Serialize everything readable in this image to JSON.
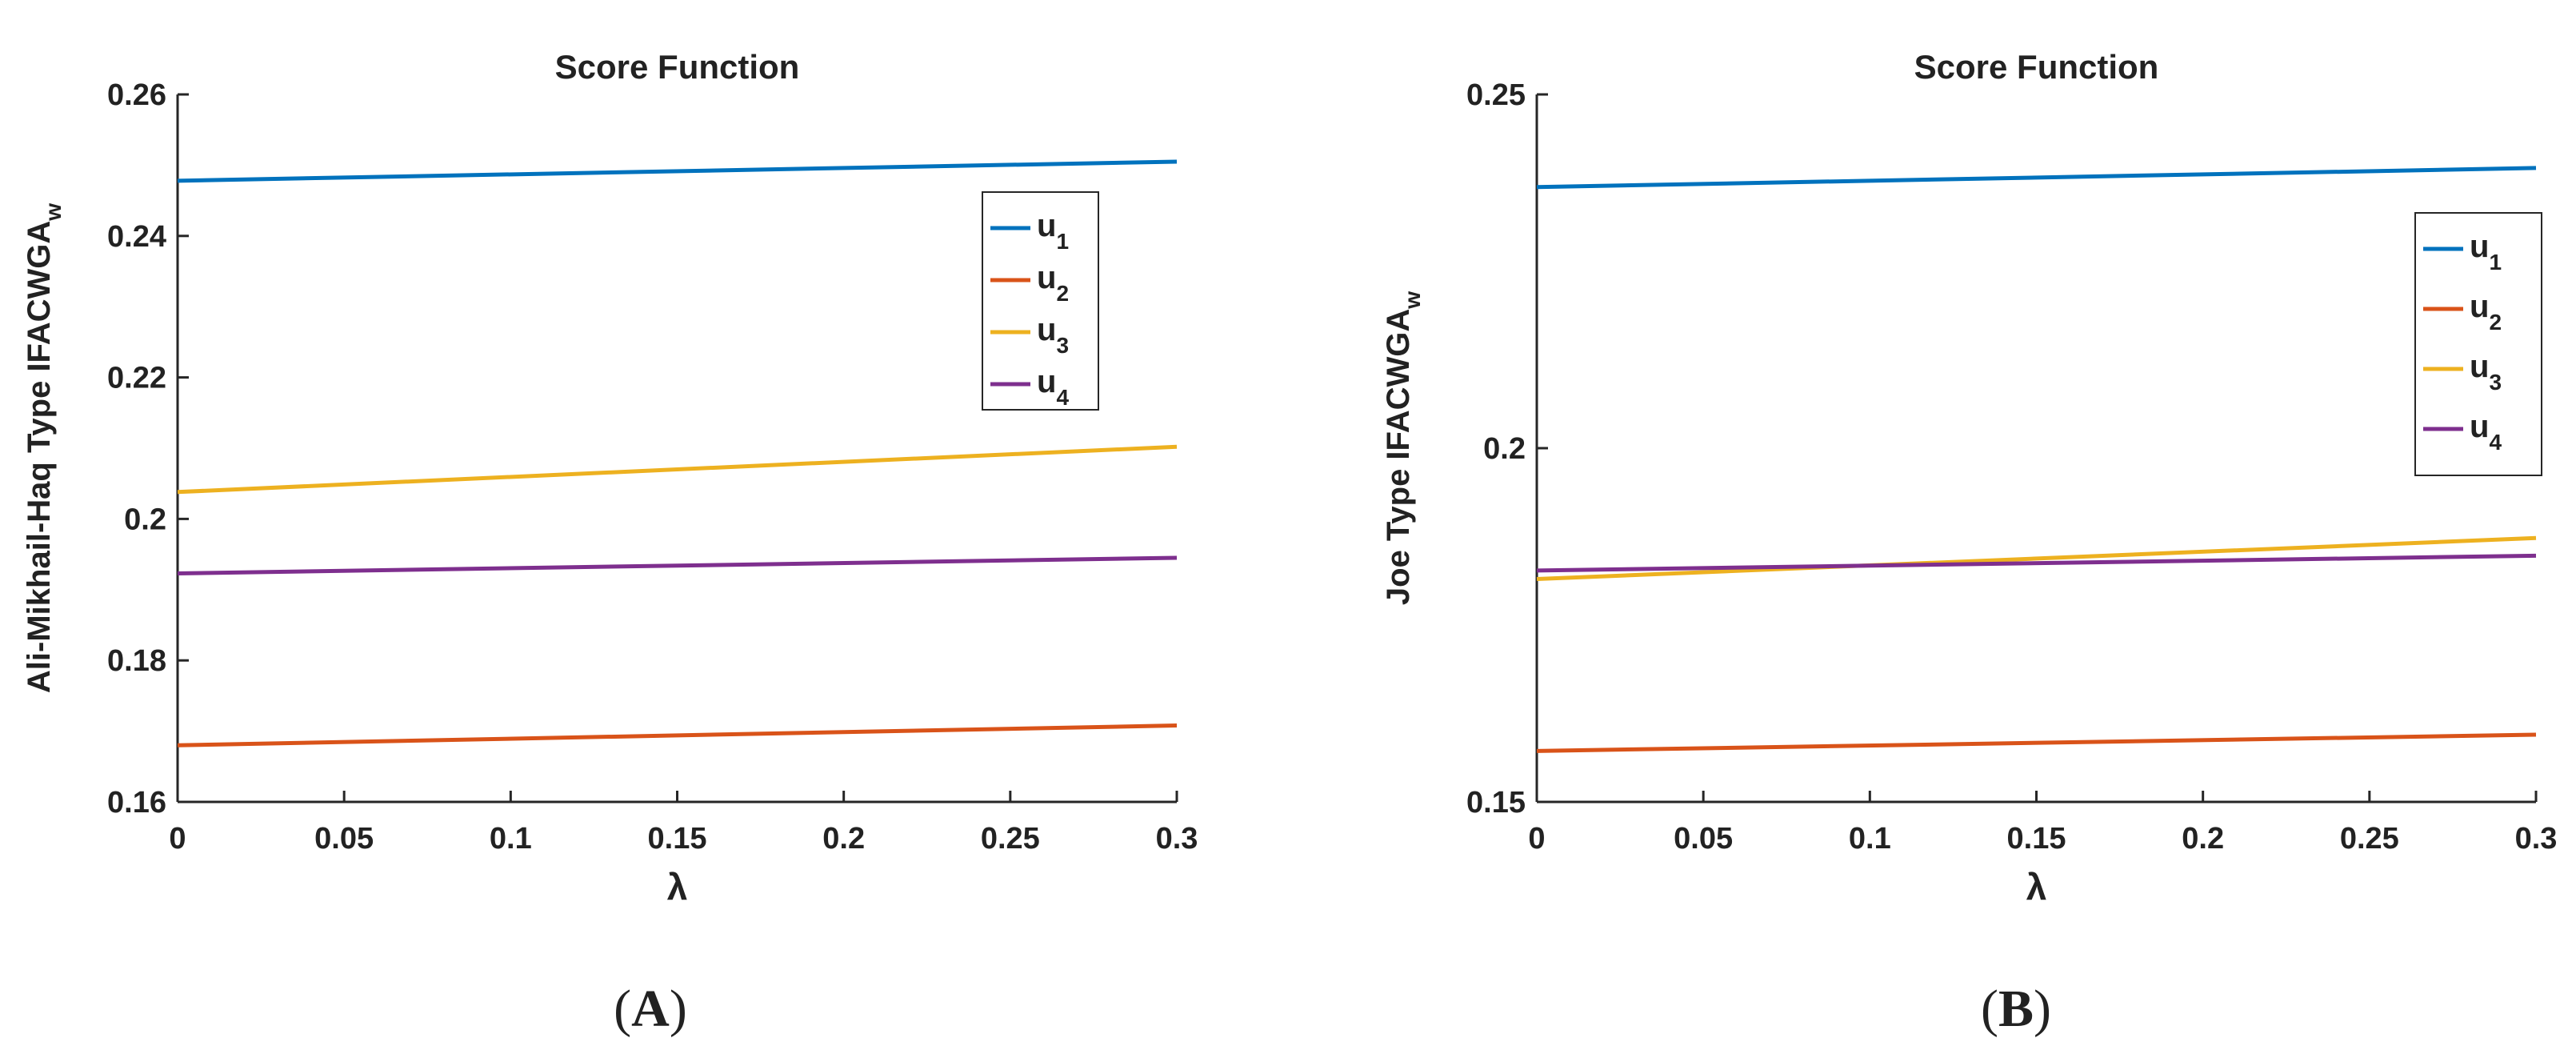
{
  "panels": [
    {
      "caption_letter": "A",
      "chart_data": {
        "type": "line",
        "title": "Score Function",
        "xlabel": "λ",
        "ylabel_main": "Ali-Mikhail-Haq Type IFACWGA",
        "ylabel_sub": "w",
        "x": [
          0,
          0.3
        ],
        "xlim": [
          0,
          0.3
        ],
        "ylim": [
          0.16,
          0.26
        ],
        "xticks": [
          "0",
          "0.05",
          "0.1",
          "0.15",
          "0.2",
          "0.25",
          "0.3"
        ],
        "yticks": [
          "0.16",
          "0.18",
          "0.2",
          "0.22",
          "0.24",
          "0.26"
        ],
        "legend_position": "upper-right",
        "series": [
          {
            "name": "u",
            "sub": "1",
            "color": "#0072BD",
            "values": [
              0.2478,
              0.2505
            ]
          },
          {
            "name": "u",
            "sub": "2",
            "color": "#D95319",
            "values": [
              0.168,
              0.1708
            ]
          },
          {
            "name": "u",
            "sub": "3",
            "color": "#EDB120",
            "values": [
              0.2038,
              0.2102
            ]
          },
          {
            "name": "u",
            "sub": "4",
            "color": "#7E2F8E",
            "values": [
              0.1923,
              0.1945
            ]
          }
        ]
      }
    },
    {
      "caption_letter": "B",
      "chart_data": {
        "type": "line",
        "title": "Score Function",
        "xlabel": "λ",
        "ylabel_main": "Joe Type IFACWGA",
        "ylabel_sub": "w",
        "x": [
          0,
          0.3
        ],
        "xlim": [
          0,
          0.3
        ],
        "ylim": [
          0.15,
          0.25
        ],
        "xticks": [
          "0",
          "0.05",
          "0.1",
          "0.15",
          "0.2",
          "0.25",
          "0.3"
        ],
        "yticks": [
          "0.15",
          "0.2",
          "0.25"
        ],
        "legend_position": "upper-right",
        "series": [
          {
            "name": "u",
            "sub": "1",
            "color": "#0072BD",
            "values": [
              0.2369,
              0.2396
            ]
          },
          {
            "name": "u",
            "sub": "2",
            "color": "#D95319",
            "values": [
              0.1572,
              0.1595
            ]
          },
          {
            "name": "u",
            "sub": "3",
            "color": "#EDB120",
            "values": [
              0.1815,
              0.1873
            ]
          },
          {
            "name": "u",
            "sub": "4",
            "color": "#7E2F8E",
            "values": [
              0.1827,
              0.1848
            ]
          }
        ]
      }
    }
  ]
}
